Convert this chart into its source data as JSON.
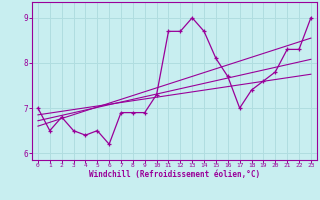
{
  "xlabel": "Windchill (Refroidissement éolien,°C)",
  "background_color": "#c8eef0",
  "line_color": "#990099",
  "grid_color": "#b0dde0",
  "x_data": [
    0,
    1,
    2,
    3,
    4,
    5,
    6,
    7,
    8,
    9,
    10,
    11,
    12,
    13,
    14,
    15,
    16,
    17,
    18,
    19,
    20,
    21,
    22,
    23
  ],
  "y_data": [
    7.0,
    6.5,
    6.8,
    6.5,
    6.4,
    6.5,
    6.2,
    6.9,
    6.9,
    6.9,
    7.3,
    8.7,
    8.7,
    9.0,
    8.7,
    8.1,
    7.7,
    7.0,
    7.4,
    7.6,
    7.8,
    8.3,
    8.3,
    9.0
  ],
  "ylim": [
    5.85,
    9.35
  ],
  "xlim": [
    -0.5,
    23.5
  ],
  "yticks": [
    6,
    7,
    8,
    9
  ],
  "xticks": [
    0,
    1,
    2,
    3,
    4,
    5,
    6,
    7,
    8,
    9,
    10,
    11,
    12,
    13,
    14,
    15,
    16,
    17,
    18,
    19,
    20,
    21,
    22,
    23
  ],
  "regression_lines": [
    {
      "x": [
        0,
        23
      ],
      "y": [
        6.85,
        7.75
      ]
    },
    {
      "x": [
        0,
        23
      ],
      "y": [
        6.72,
        8.08
      ]
    },
    {
      "x": [
        0,
        23
      ],
      "y": [
        6.6,
        8.55
      ]
    }
  ]
}
